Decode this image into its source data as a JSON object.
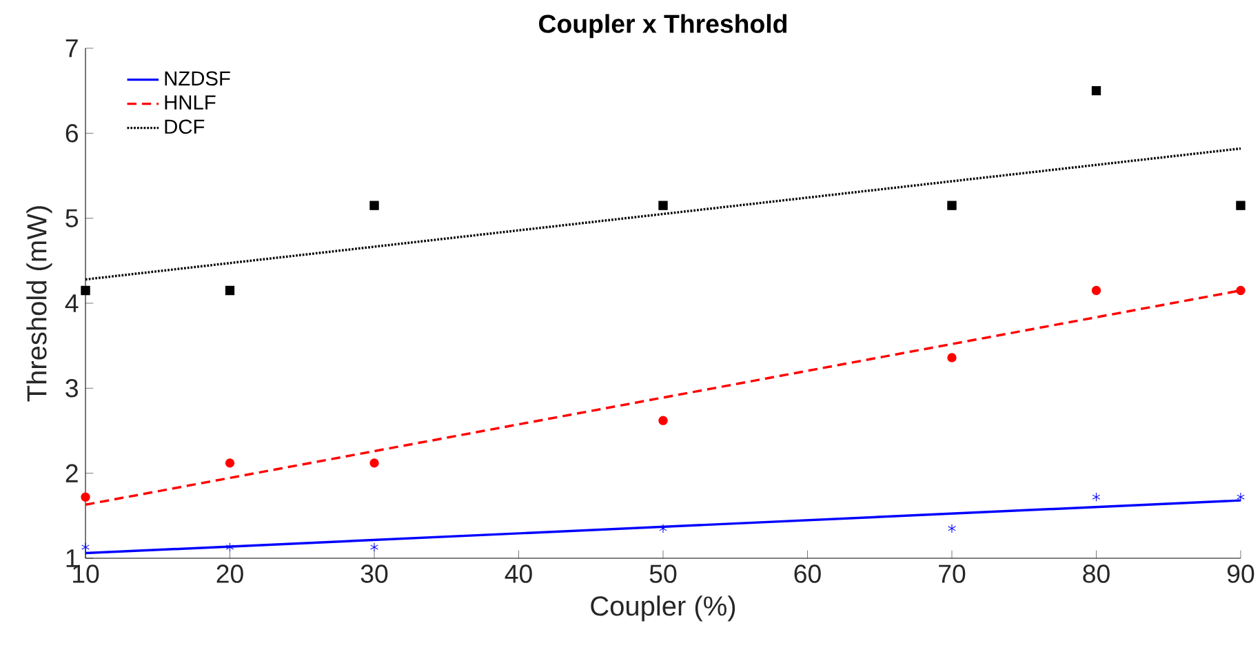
{
  "chart_data": {
    "type": "scatter",
    "title": "Coupler x Threshold",
    "xlabel": "Coupler (%)",
    "ylabel": "Threshold (mW)",
    "xlim": [
      10,
      90
    ],
    "ylim": [
      1,
      7
    ],
    "xticks": [
      10,
      20,
      30,
      40,
      50,
      60,
      70,
      80,
      90
    ],
    "yticks": [
      1,
      2,
      3,
      4,
      5,
      6,
      7
    ],
    "grid": false,
    "legend": "top left",
    "series": [
      {
        "marker": "cross",
        "color": "#0000ff",
        "x": [
          10,
          20,
          30,
          50,
          70,
          80,
          90
        ],
        "values": [
          1.13,
          1.13,
          1.13,
          1.35,
          1.35,
          1.72,
          1.72
        ]
      },
      {
        "marker": "circle",
        "color": "#ff0000",
        "x": [
          10,
          20,
          30,
          50,
          70,
          80,
          90
        ],
        "values": [
          1.72,
          2.12,
          2.12,
          2.62,
          3.36,
          4.15,
          4.15
        ]
      },
      {
        "marker": "square",
        "color": "#000000",
        "x": [
          10,
          20,
          30,
          50,
          70,
          80,
          90
        ],
        "values": [
          4.15,
          4.15,
          5.15,
          5.15,
          5.15,
          6.5,
          5.15
        ]
      },
      {
        "type": "line",
        "name": "NZDSF",
        "line_style": "solid",
        "color": "#0000ff",
        "x": [
          10,
          90
        ],
        "values": [
          1.06,
          1.68
        ]
      },
      {
        "type": "line",
        "name": "HNLF",
        "line_style": "dashed",
        "color": "#ff0000",
        "x": [
          10,
          90
        ],
        "values": [
          1.63,
          4.15
        ]
      },
      {
        "type": "line",
        "name": "DCF",
        "line_style": "dotted",
        "color": "#000000",
        "x": [
          10,
          90
        ],
        "values": [
          4.28,
          5.82
        ]
      }
    ]
  }
}
